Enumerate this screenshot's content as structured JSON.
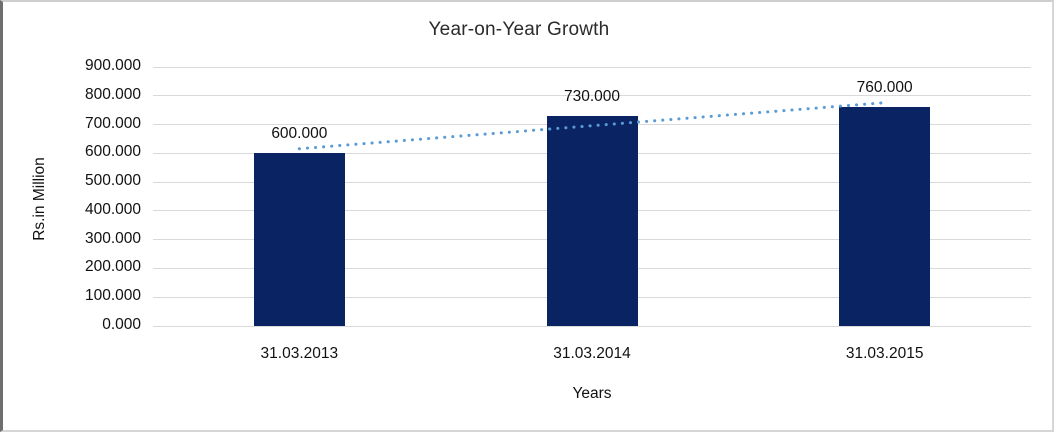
{
  "chart_data": {
    "type": "bar",
    "title": "Year-on-Year Growth",
    "xlabel": "Years",
    "ylabel": "Rs.in Million",
    "categories": [
      "31.03.2013",
      "31.03.2014",
      "31.03.2015"
    ],
    "values": [
      600,
      730,
      760
    ],
    "value_labels": [
      "600.000",
      "730.000",
      "760.000"
    ],
    "ylim": [
      0,
      900
    ],
    "ytick_step": 100,
    "ytick_labels": [
      "0.000",
      "100.000",
      "200.000",
      "300.000",
      "400.000",
      "500.000",
      "600.000",
      "700.000",
      "800.000",
      "900.000"
    ],
    "grid": "horizontal",
    "legend": "none",
    "colors": {
      "bar": "#0A2463",
      "trendline": "#5B9BD5",
      "gridline": "#D9D9D9"
    },
    "trendline": {
      "style": "dotted-linear",
      "start_value": 616,
      "end_value": 776,
      "from_category_index": 0,
      "to_category_index": 2
    }
  }
}
